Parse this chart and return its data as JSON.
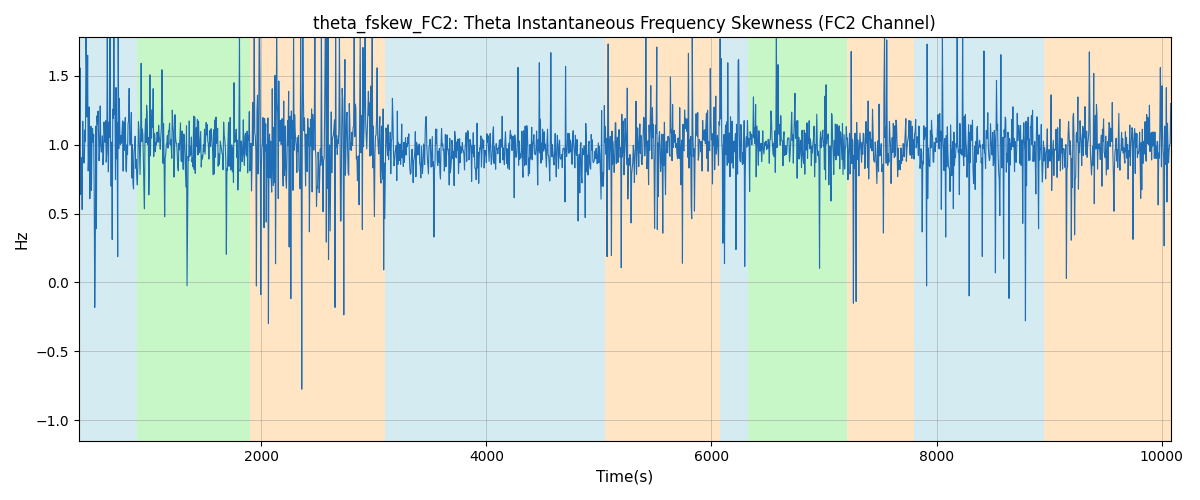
{
  "title": "theta_fskew_FC2: Theta Instantaneous Frequency Skewness (FC2 Channel)",
  "xlabel": "Time(s)",
  "ylabel": "Hz",
  "xlim": [
    380,
    10080
  ],
  "ylim": [
    -1.15,
    1.78
  ],
  "background_regions": [
    {
      "xstart": 380,
      "xend": 900,
      "color": "#add8e6",
      "alpha": 0.5
    },
    {
      "xstart": 900,
      "xend": 1900,
      "color": "#90ee90",
      "alpha": 0.5
    },
    {
      "xstart": 1900,
      "xend": 3100,
      "color": "#ffd59e",
      "alpha": 0.6
    },
    {
      "xstart": 3100,
      "xend": 5050,
      "color": "#add8e6",
      "alpha": 0.5
    },
    {
      "xstart": 5050,
      "xend": 6080,
      "color": "#ffd59e",
      "alpha": 0.6
    },
    {
      "xstart": 6080,
      "xend": 6320,
      "color": "#add8e6",
      "alpha": 0.5
    },
    {
      "xstart": 6320,
      "xend": 7200,
      "color": "#90ee90",
      "alpha": 0.5
    },
    {
      "xstart": 7200,
      "xend": 7800,
      "color": "#ffd59e",
      "alpha": 0.6
    },
    {
      "xstart": 7800,
      "xend": 8950,
      "color": "#add8e6",
      "alpha": 0.5
    },
    {
      "xstart": 8950,
      "xend": 10080,
      "color": "#ffd59e",
      "alpha": 0.6
    }
  ],
  "line_color": "#1f6eb5",
  "line_width": 0.8,
  "seed": 42,
  "n_points": 2000,
  "grid": true,
  "title_fontsize": 12,
  "axis_fontsize": 11
}
